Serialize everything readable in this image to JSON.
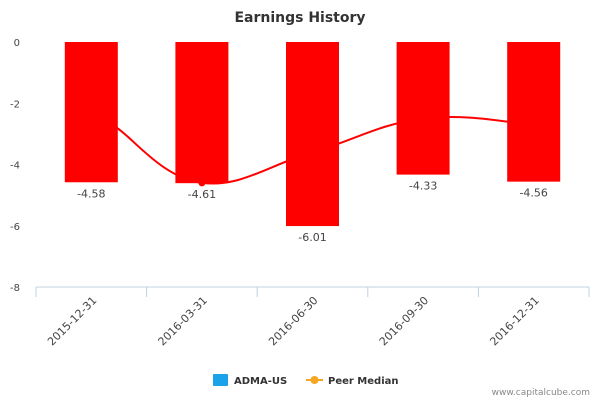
{
  "chart_data": {
    "type": "bar",
    "title": "Earnings History",
    "categories": [
      "2015-12-31",
      "2016-03-31",
      "2016-06-30",
      "2016-09-30",
      "2016-12-31"
    ],
    "series": [
      {
        "name": "ADMA-US",
        "type": "bar",
        "values": [
          -4.58,
          -4.61,
          -6.01,
          -4.33,
          -4.56
        ],
        "color": "#ff0000",
        "legend_color": "#1aa3e8"
      },
      {
        "name": "Peer Median",
        "type": "line",
        "values": [
          -2.8,
          -4.6,
          -3.6,
          -2.5,
          -2.7
        ],
        "color": "#ff0000",
        "legend_color": "#f5a623"
      }
    ],
    "data_labels": [
      "-4.58",
      "-4.61",
      "-6.01",
      "-4.33",
      "-4.56"
    ],
    "y_ticks": [
      "0",
      "-2",
      "-4",
      "-6",
      "-8"
    ],
    "ylim": [
      -8,
      0
    ],
    "xlabel": "",
    "ylabel": "",
    "grid": false,
    "legend_position": "bottom"
  },
  "footer": {
    "credit": "www.capitalcube.com"
  }
}
